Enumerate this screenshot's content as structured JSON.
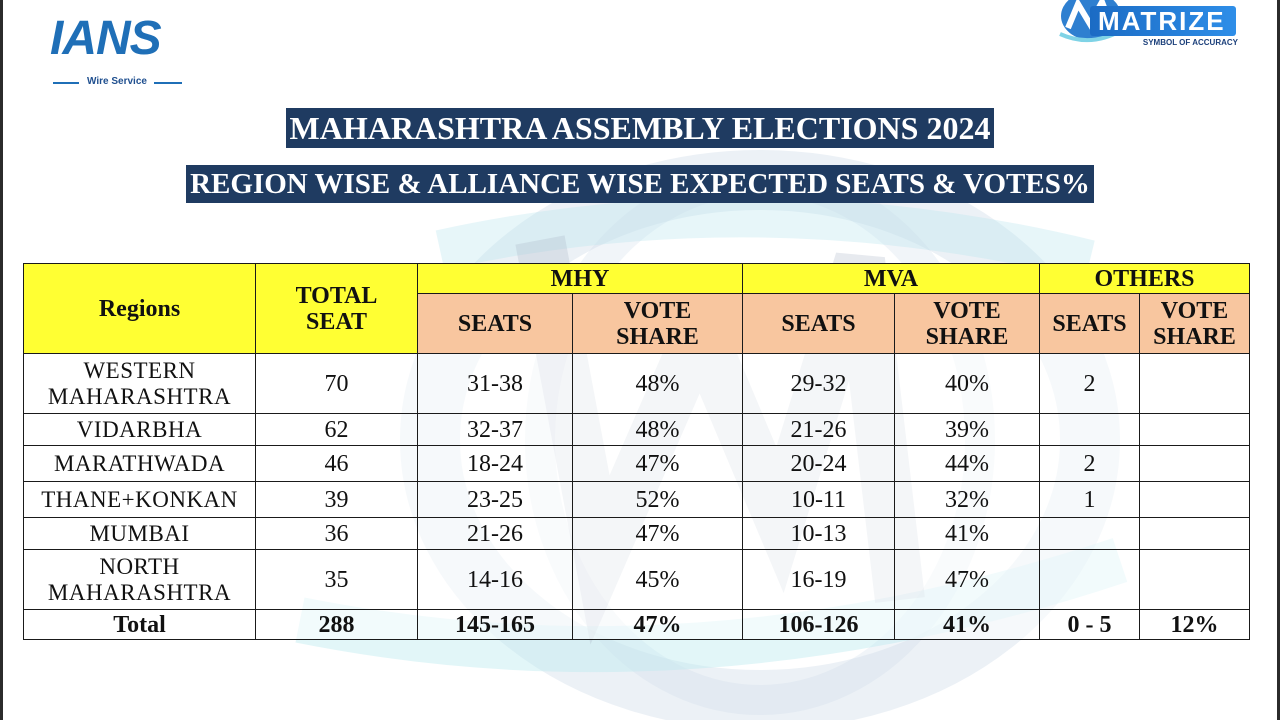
{
  "logos": {
    "ians": {
      "name": "IANS",
      "tagline": "Wire Service"
    },
    "matrize": {
      "name": "MATRIZE",
      "tagline": "SYMBOL OF ACCURACY"
    }
  },
  "title": "MAHARASHTRA ASSEMBLY ELECTIONS 2024",
  "subtitle": "REGION WISE & ALLIANCE WISE EXPECTED SEATS & VOTES%",
  "colors": {
    "header_yellow": "#ffff33",
    "subheader_peach": "#f8c69f",
    "title_bg": "#1f3b61"
  },
  "table": {
    "headers": {
      "regions": "Regions",
      "total_seat_1": "TOTAL",
      "total_seat_2": "SEAT",
      "groups": [
        "MHY",
        "MVA",
        "OTHERS"
      ],
      "seats": "SEATS",
      "vote_1": "VOTE",
      "vote_2": "SHARE"
    },
    "rows": [
      {
        "region_1": "WESTERN",
        "region_2": "MAHARASHTRA",
        "total": "70",
        "mhy_seats": "31-38",
        "mhy_vote": "48%",
        "mva_seats": "29-32",
        "mva_vote": "40%",
        "oth_seats": "2",
        "oth_vote": ""
      },
      {
        "region_1": "VIDARBHA",
        "region_2": "",
        "total": "62",
        "mhy_seats": "32-37",
        "mhy_vote": "48%",
        "mva_seats": "21-26",
        "mva_vote": "39%",
        "oth_seats": "",
        "oth_vote": ""
      },
      {
        "region_1": "MARATHWADA",
        "region_2": "",
        "total": "46",
        "mhy_seats": "18-24",
        "mhy_vote": "47%",
        "mva_seats": "20-24",
        "mva_vote": "44%",
        "oth_seats": "2",
        "oth_vote": ""
      },
      {
        "region_1": "THANE+KONKAN",
        "region_2": "",
        "total": "39",
        "mhy_seats": "23-25",
        "mhy_vote": "52%",
        "mva_seats": "10-11",
        "mva_vote": "32%",
        "oth_seats": "1",
        "oth_vote": ""
      },
      {
        "region_1": "MUMBAI",
        "region_2": "",
        "total": "36",
        "mhy_seats": "21-26",
        "mhy_vote": "47%",
        "mva_seats": "10-13",
        "mva_vote": "41%",
        "oth_seats": "",
        "oth_vote": ""
      },
      {
        "region_1": "NORTH",
        "region_2": "MAHARASHTRA",
        "total": "35",
        "mhy_seats": "14-16",
        "mhy_vote": "45%",
        "mva_seats": "16-19",
        "mva_vote": "47%",
        "oth_seats": "",
        "oth_vote": ""
      }
    ],
    "total": {
      "label": "Total",
      "total": "288",
      "mhy_seats": "145-165",
      "mhy_vote": "47%",
      "mva_seats": "106-126",
      "mva_vote": "41%",
      "oth_seats": "0 - 5",
      "oth_vote": "12%"
    }
  }
}
